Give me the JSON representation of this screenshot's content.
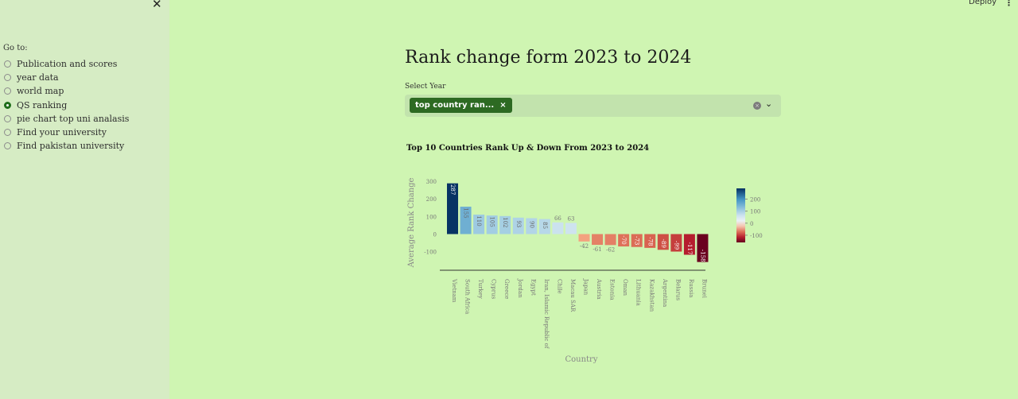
{
  "sidebar": {
    "close_label": "✕",
    "goto_label": "Go to:",
    "items": [
      {
        "label": "Publication and scores",
        "selected": false
      },
      {
        "label": "year data",
        "selected": false
      },
      {
        "label": "world map",
        "selected": false
      },
      {
        "label": "QS ranking",
        "selected": true
      },
      {
        "label": "pie chart top uni analasis",
        "selected": false
      },
      {
        "label": "Find your university",
        "selected": false
      },
      {
        "label": "Find pakistan university",
        "selected": false
      }
    ]
  },
  "topbar": {
    "deploy_label": "Deploy",
    "menu_label": "⋮"
  },
  "main": {
    "title": "Rank change form 2023 to 2024",
    "select_label": "Select Year",
    "chip_label": "top country ran...",
    "chip_remove": "×",
    "clear_icon": "×",
    "dropdown_icon": "⌄"
  },
  "chart_data": {
    "type": "bar",
    "title": "Top 10 Countries Rank Up & Down From 2023 to 2024",
    "xlabel": "Country",
    "ylabel": "Average Rank Change",
    "categories": [
      "Vietnam",
      "South Africa",
      "Turkey",
      "Cyprus",
      "Greece",
      "Jordan",
      "Egypt",
      "Iran, Islamic Republic of",
      "Chile",
      "Macau SAR",
      "Japan",
      "Austria",
      "Estonia",
      "Oman",
      "Lithuania",
      "Kazakhstan",
      "Argentina",
      "Belarus",
      "Russia",
      "Brunei"
    ],
    "values": [
      287,
      155,
      110,
      105,
      102,
      93,
      90,
      85,
      66,
      63,
      -42,
      -61,
      -62,
      -70,
      -73,
      -78,
      -89,
      -99,
      -117,
      -158
    ],
    "yticks": [
      300,
      200,
      100,
      0,
      -100
    ],
    "ylim": [
      -160,
      300
    ],
    "colorbar": {
      "ticks": [
        200,
        100,
        0,
        -100
      ],
      "range": [
        -160,
        290
      ],
      "scheme": "RdBu"
    }
  }
}
